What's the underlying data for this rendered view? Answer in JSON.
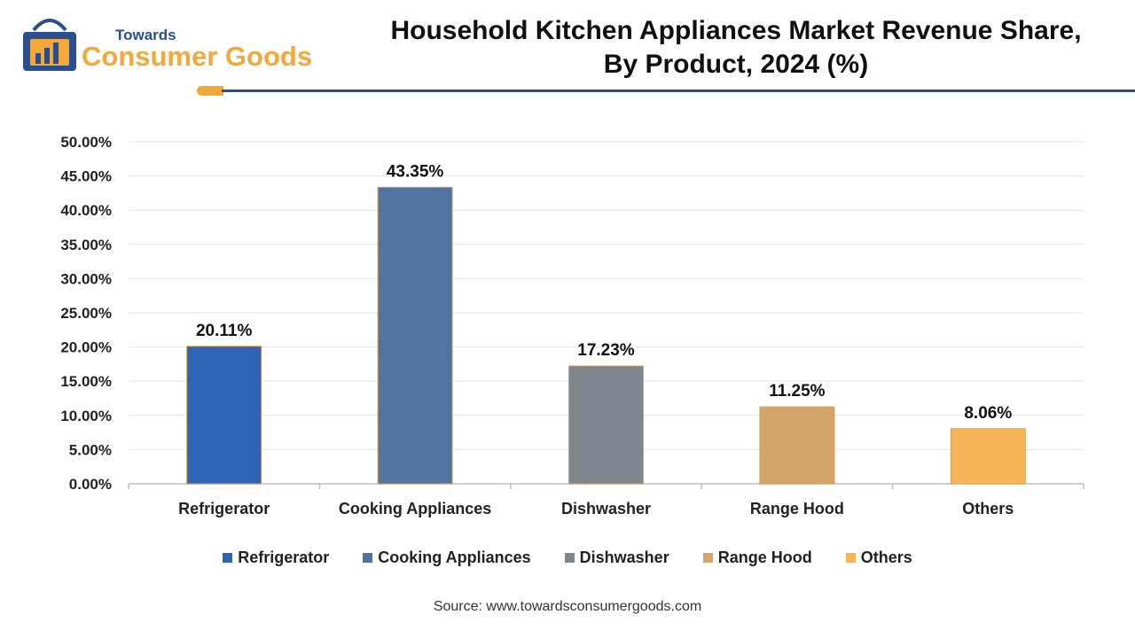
{
  "logo": {
    "line1": "Towards",
    "line2": "Consumer Goods"
  },
  "title_line1": "Household Kitchen Appliances Market Revenue Share,",
  "title_line2": "By Product, 2024 (%)",
  "source": "Source: www.towardsconsumergoods.com",
  "colors": {
    "brand_blue": "#2a4f8f",
    "brand_orange": "#f4a83a",
    "bar_border": "#d9a24a"
  },
  "chart_data": {
    "type": "bar",
    "categories": [
      "Refrigerator",
      "Cooking Appliances",
      "Dishwasher",
      "Range Hood",
      "Others"
    ],
    "values": [
      20.11,
      43.35,
      17.23,
      11.25,
      8.06
    ],
    "data_labels": [
      "20.11%",
      "43.35%",
      "17.23%",
      "11.25%",
      "8.06%"
    ],
    "colors": [
      "#2e63b6",
      "#52739f",
      "#7f868e",
      "#d4a46a",
      "#f7b558"
    ],
    "ylim": [
      0,
      50
    ],
    "yticks": [
      0,
      5,
      10,
      15,
      20,
      25,
      30,
      35,
      40,
      45,
      50
    ],
    "ytick_labels": [
      "0.00%",
      "5.00%",
      "10.00%",
      "15.00%",
      "20.00%",
      "25.00%",
      "30.00%",
      "35.00%",
      "40.00%",
      "45.00%",
      "50.00%"
    ],
    "grid": true,
    "legend_position": "bottom"
  }
}
